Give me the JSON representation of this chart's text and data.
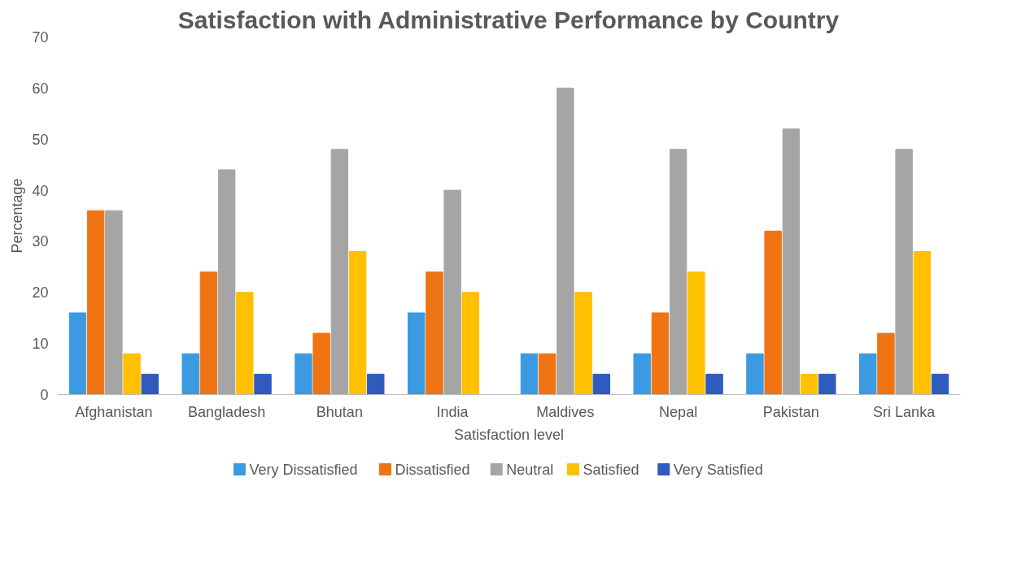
{
  "chart_data": {
    "type": "bar",
    "title": "Satisfaction with Administrative Performance by Country",
    "xlabel": "Satisfaction level",
    "ylabel": "Percentage",
    "categories": [
      "Afghanistan",
      "Bangladesh",
      "Bhutan",
      "India",
      "Maldives",
      "Nepal",
      "Pakistan",
      "Sri Lanka"
    ],
    "series": [
      {
        "name": "Very Dissatisfied",
        "color": "#3b9ae1",
        "values": [
          16,
          8,
          8,
          16,
          8,
          8,
          8,
          8
        ]
      },
      {
        "name": "Dissatisfied",
        "color": "#f07314",
        "values": [
          36,
          24,
          12,
          24,
          8,
          16,
          32,
          12
        ]
      },
      {
        "name": "Neutral",
        "color": "#a5a5a5",
        "values": [
          36,
          44,
          48,
          40,
          60,
          48,
          52,
          48
        ]
      },
      {
        "name": "Satisfied",
        "color": "#ffc000",
        "values": [
          8,
          20,
          28,
          20,
          20,
          24,
          4,
          28
        ]
      },
      {
        "name": "Very Satisfied",
        "color": "#2e5bbd",
        "values": [
          4,
          4,
          4,
          0,
          4,
          4,
          4,
          4
        ]
      }
    ],
    "ylim": [
      0,
      70
    ],
    "yticks": [
      0,
      10,
      20,
      30,
      40,
      50,
      60,
      70
    ],
    "grid": false,
    "legend": "bottom"
  }
}
